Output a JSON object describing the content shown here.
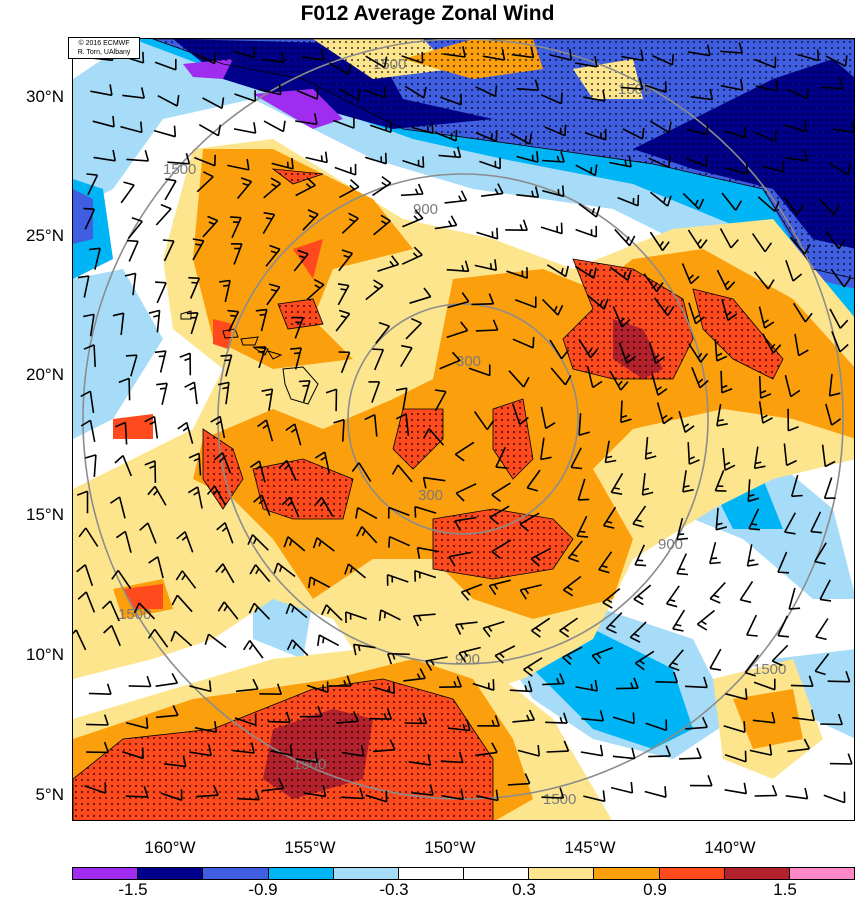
{
  "title": "F012 Average Zonal Wind",
  "credit": {
    "line1": "© 2016 ECMWF",
    "line2": "R. Torn, UAlbany"
  },
  "lat_labels": [
    "30°N",
    "25°N",
    "20°N",
    "15°N",
    "10°N",
    "5°N"
  ],
  "lon_labels": [
    "160°W",
    "155°W",
    "150°W",
    "145°W",
    "140°W"
  ],
  "contour_labels": {
    "inner": "300",
    "mid": "900",
    "outer": "1500"
  },
  "colorbar": {
    "colors": [
      "#a02cf0",
      "#00008b",
      "#3f5ee2",
      "#00b5f5",
      "#a6dcf8",
      "#ffffff",
      "#ffffff",
      "#fde58d",
      "#fb9f0d",
      "#ff4a1e",
      "#b3212d",
      "#ff88c8"
    ],
    "labels": [
      "-1.5",
      "-0.9",
      "-0.3",
      "0.3",
      "0.9",
      "1.5"
    ]
  },
  "palette": {
    "lightblue": "#a6dcf8",
    "cyan": "#00b5f5",
    "blue": "#3f5ee2",
    "navy": "#00008b",
    "purple": "#a02cf0",
    "yellow": "#fde58d",
    "orange": "#fb9f0d",
    "red": "#ff4a1e",
    "darkred": "#b3212d"
  }
}
